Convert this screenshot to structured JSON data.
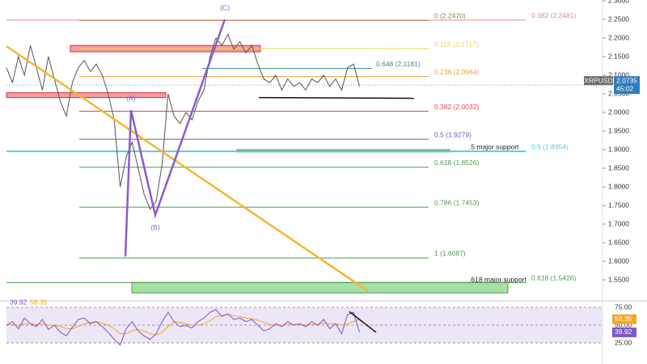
{
  "chart_data": [
    {
      "type": "line",
      "symbol": "XRPUSD",
      "last_price": {
        "value": 2.0735,
        "label": "2.0735"
      },
      "countdown": "45:02",
      "categories": [
        null,
        null,
        null,
        null,
        null,
        null,
        null,
        null,
        null,
        null,
        null,
        null,
        null,
        null,
        null,
        null,
        null,
        null,
        null,
        null,
        null,
        null,
        null,
        null,
        null,
        null,
        null,
        null,
        null,
        null,
        null,
        null,
        null,
        null,
        null,
        null,
        null,
        null,
        null,
        null,
        null,
        null,
        null,
        null,
        null,
        null,
        null,
        null,
        null,
        null,
        null,
        null,
        null,
        null,
        null,
        null,
        null,
        null,
        null,
        null
      ],
      "series": [
        {
          "color": "#555555",
          "values": [
            2.12,
            2.08,
            2.15,
            2.1,
            2.18,
            2.12,
            2.06,
            2.15,
            2.09,
            2.03,
            1.99,
            2.08,
            2.12,
            2.14,
            2.11,
            2.13,
            2.1,
            2.05,
            1.98,
            1.8,
            1.88,
            1.92,
            1.85,
            1.78,
            1.74,
            1.76,
            1.86,
            2.05,
            1.99,
            1.97,
            2.0,
            1.98,
            2.03,
            2.06,
            2.15,
            2.2,
            2.18,
            2.21,
            2.17,
            2.19,
            2.16,
            2.18,
            2.13,
            2.09,
            2.08,
            2.1,
            2.06,
            2.09,
            2.07,
            2.08,
            2.06,
            2.09,
            2.08,
            2.1,
            2.07,
            2.09,
            2.06,
            2.12,
            2.13,
            2.07
          ]
        }
      ],
      "ylim": [
        1.5,
        2.3
      ],
      "yticks": [
        {
          "value": 1.55,
          "label": "1.5500"
        },
        {
          "value": 1.6,
          "label": "1.6000"
        },
        {
          "value": 1.65,
          "label": "1.6500"
        },
        {
          "value": 1.7,
          "label": "1.7000"
        },
        {
          "value": 1.75,
          "label": "1.7500"
        },
        {
          "value": 1.8,
          "label": "1.8000"
        },
        {
          "value": 1.85,
          "label": "1.8500"
        },
        {
          "value": 1.9,
          "label": "1.9000"
        },
        {
          "value": 1.95,
          "label": "1.9500"
        },
        {
          "value": 2.0,
          "label": "2.0000"
        },
        {
          "value": 2.05,
          "label": "2.0500"
        },
        {
          "value": 2.1,
          "label": "2.1000"
        },
        {
          "value": 2.15,
          "label": "2.1500"
        },
        {
          "value": 2.2,
          "label": "2.2000"
        },
        {
          "value": 2.25,
          "label": "2.2500"
        },
        {
          "value": 2.3,
          "label": "2.3000"
        }
      ],
      "levels": [
        {
          "value": 2.247,
          "label": "0 (2.2470)",
          "color": "#8a8a3a"
        },
        {
          "value": 2.2481,
          "label": "0.382 (2.2481)",
          "color": "#e88a8a"
        },
        {
          "value": 2.1717,
          "label": "0.118 (2.1717)",
          "color": "#e6d84a"
        },
        {
          "value": 2.1181,
          "label": "0.648 (2.1181)",
          "color": "#3a8a8a"
        },
        {
          "value": 2.0964,
          "label": "0.236 (2.0964)",
          "color": "#e8a040"
        },
        {
          "value": 2.0032,
          "label": "0.382 (2.0032)",
          "color": "#d94a4a"
        },
        {
          "value": 1.9279,
          "label": "0.5 (1.9279)",
          "color": "#7a52c2"
        },
        {
          "value": 1.8954,
          "label": "0.5 (1.8954)",
          "color": "#5fc8d8"
        },
        {
          "value": 1.8526,
          "label": "0.618 (1.8526)",
          "color": "#4a9a4a"
        },
        {
          "value": 1.7453,
          "label": "0.786 (1.7453)",
          "color": "#4a9a4a"
        },
        {
          "value": 1.6087,
          "label": "1 (1.6087)",
          "color": "#4a9a4a"
        },
        {
          "value": 1.5426,
          "label": "0.618 (1.5426)",
          "color": "#4a9a4a"
        }
      ],
      "zones": [
        {
          "from": 2.163,
          "to": 2.18,
          "color": "#f07a86"
        },
        {
          "from": 2.04,
          "to": 2.053,
          "color": "#f07a86"
        },
        {
          "from": 1.894,
          "to": 1.9,
          "color": "#6fbf73",
          "label": ".5 major support"
        },
        {
          "from": 1.515,
          "to": 1.543,
          "color": "#8fd18f",
          "label": ".618 major support"
        }
      ],
      "wave": {
        "values": [
          1.613,
          2.006,
          1.724,
          2.25
        ],
        "labels": [
          null,
          "(A)",
          "(B)",
          "(C)"
        ],
        "color": "#8a5cc8"
      },
      "trendline": {
        "values": [
          2.178,
          1.52
        ],
        "color": "#f2b731"
      },
      "support_line": {
        "values": [
          2.04,
          2.038
        ],
        "color": "#111111"
      }
    },
    {
      "type": "line",
      "categories": [
        null,
        null,
        null,
        null,
        null,
        null,
        null,
        null,
        null,
        null,
        null,
        null,
        null,
        null,
        null,
        null,
        null,
        null,
        null,
        null,
        null,
        null,
        null,
        null,
        null,
        null,
        null,
        null,
        null,
        null,
        null,
        null,
        null,
        null,
        null,
        null,
        null,
        null,
        null,
        null,
        null,
        null,
        null,
        null,
        null,
        null,
        null,
        null,
        null,
        null,
        null,
        null,
        null,
        null,
        null,
        null,
        null,
        null,
        null,
        null
      ],
      "series": [
        {
          "color": "#7e57c2",
          "last_label": "39.92",
          "values": [
            50,
            55,
            45,
            60,
            52,
            48,
            58,
            44,
            50,
            40,
            35,
            47,
            58,
            60,
            52,
            55,
            48,
            40,
            30,
            22,
            45,
            55,
            42,
            35,
            30,
            38,
            55,
            68,
            55,
            48,
            50,
            46,
            55,
            60,
            68,
            72,
            62,
            66,
            58,
            60,
            55,
            58,
            50,
            42,
            45,
            52,
            48,
            55,
            50,
            52,
            48,
            55,
            50,
            58,
            45,
            52,
            38,
            65,
            68,
            39.92
          ]
        },
        {
          "color": "#f5a623",
          "last_label": "58.35",
          "values": [
            50,
            51,
            50,
            52,
            52,
            51,
            52,
            50,
            50,
            48,
            45,
            45,
            48,
            52,
            54,
            55,
            53,
            50,
            45,
            38,
            38,
            42,
            44,
            42,
            38,
            36,
            40,
            48,
            55,
            54,
            52,
            50,
            50,
            52,
            56,
            62,
            64,
            65,
            63,
            62,
            60,
            59,
            57,
            54,
            51,
            50,
            50,
            51,
            51,
            51,
            50,
            51,
            51,
            53,
            52,
            52,
            50,
            52,
            55,
            58.35
          ]
        }
      ],
      "ylim": [
        25,
        75
      ],
      "yticks": [
        {
          "value": 25,
          "label": "25.00"
        },
        {
          "value": 50,
          "label": "50.00"
        },
        {
          "value": 75,
          "label": "75.00"
        }
      ],
      "trendline": {
        "values": [
          69,
          40
        ],
        "color": "#111111"
      }
    }
  ]
}
